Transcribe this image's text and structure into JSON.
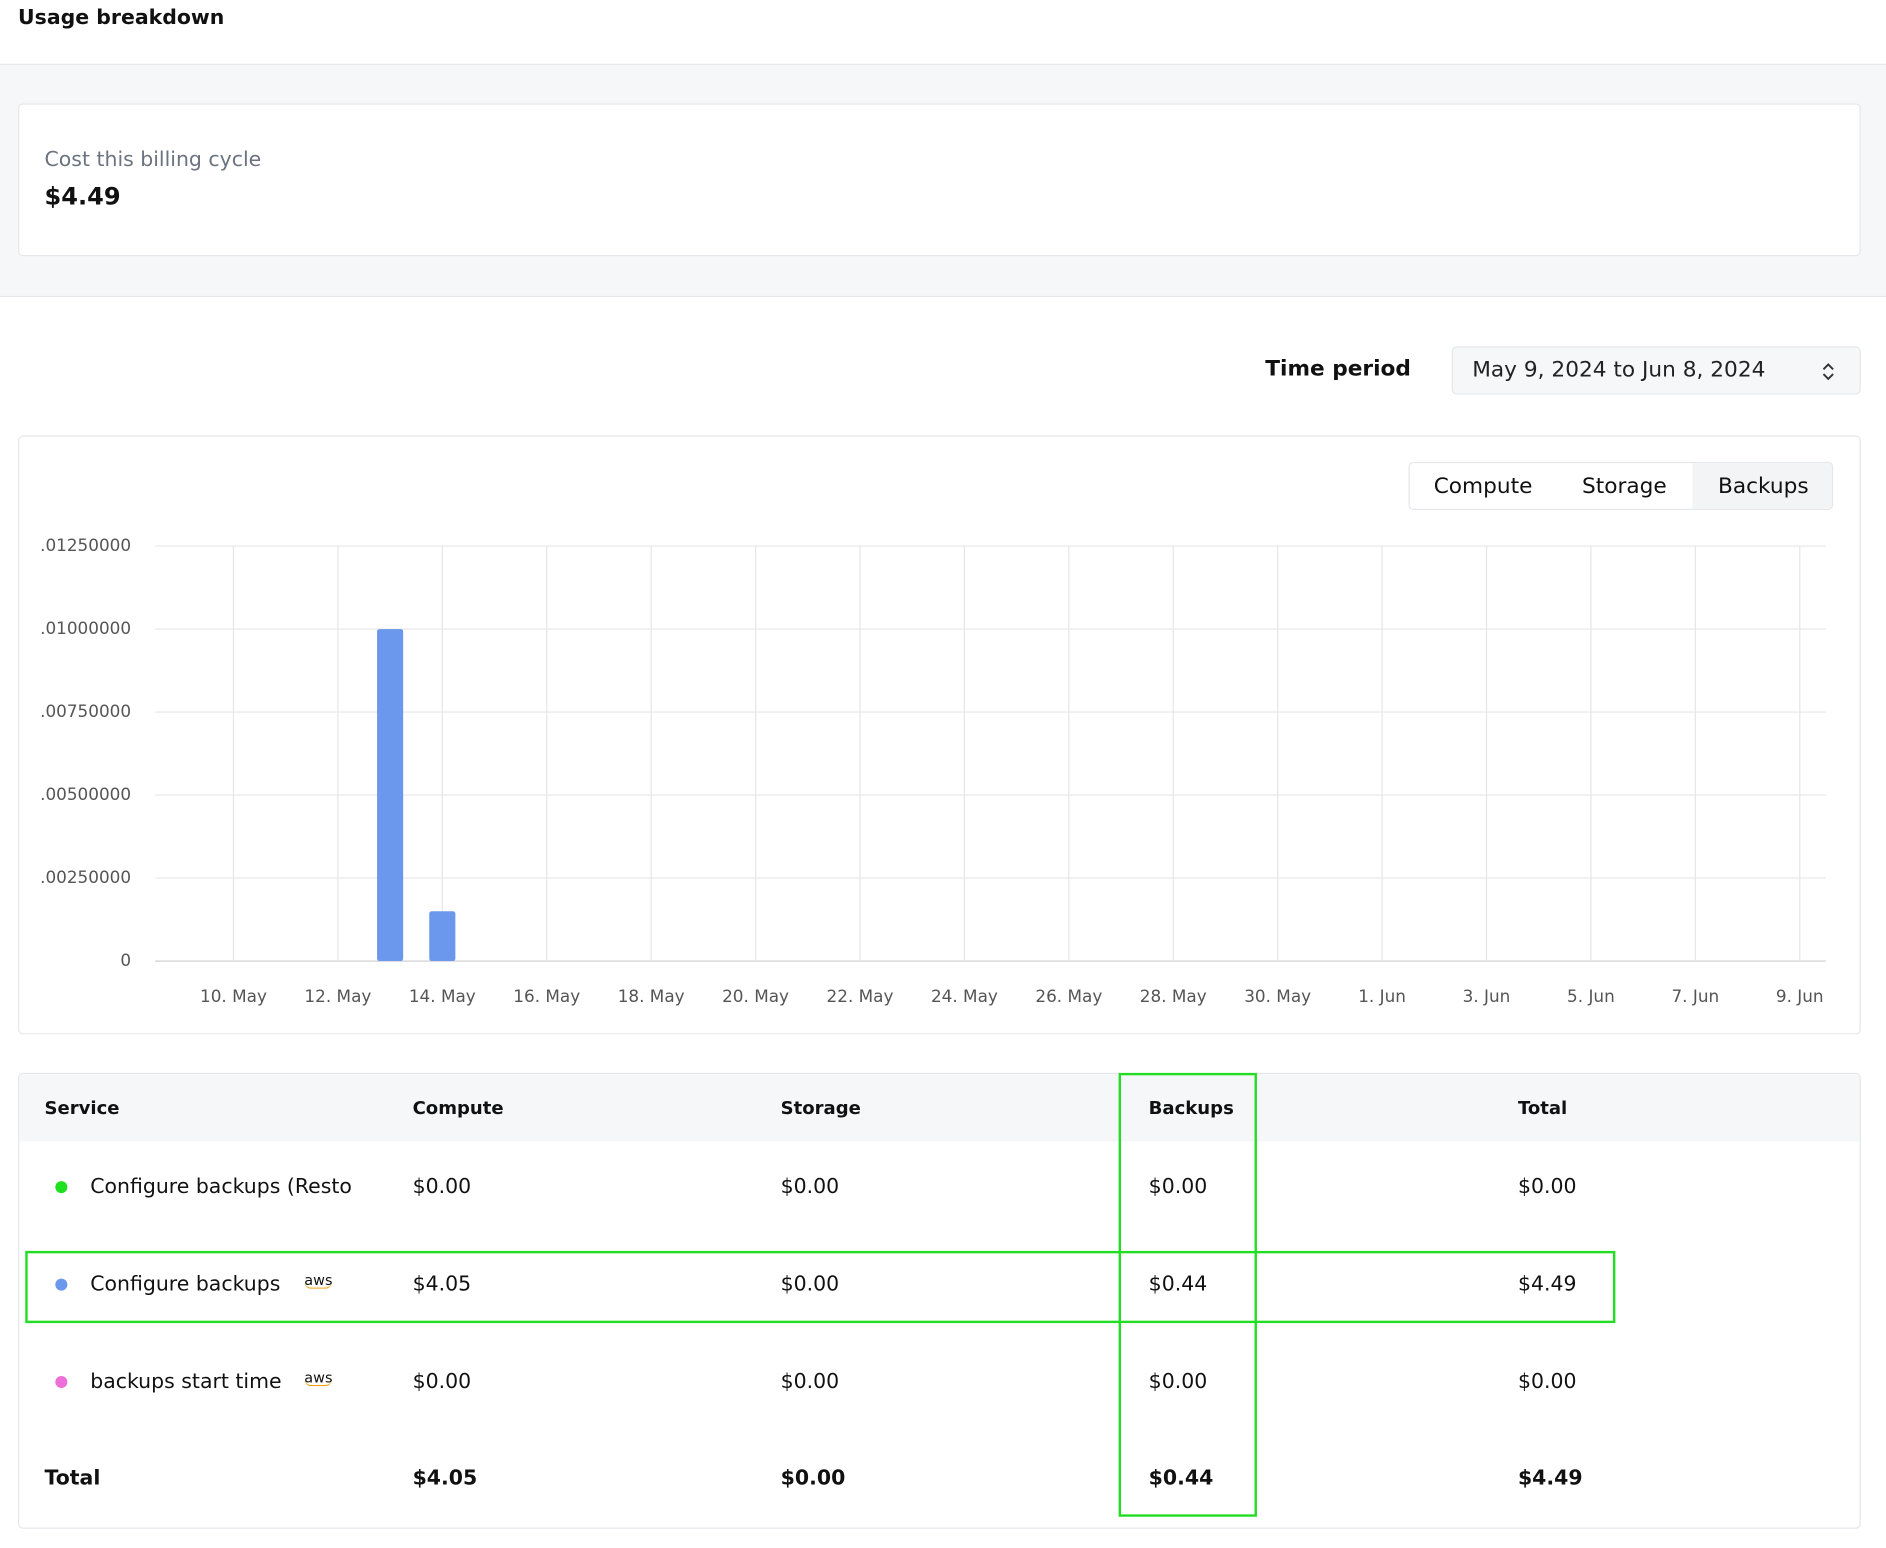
{
  "header": {
    "title": "Usage breakdown"
  },
  "cost_card": {
    "label": "Cost this billing cycle",
    "value": "$4.49"
  },
  "time_period": {
    "label": "Time period",
    "value": "May 9, 2024 to Jun 8, 2024"
  },
  "tabs": [
    "Compute",
    "Storage",
    "Backups"
  ],
  "chart_data": {
    "type": "bar",
    "color": "#6b98ec",
    "grid": true,
    "categories": [
      null,
      "10. May",
      null,
      "12. May",
      null,
      "14. May",
      null,
      "16. May",
      null,
      "18. May",
      null,
      "20. May",
      null,
      "22. May",
      null,
      "24. May",
      null,
      "26. May",
      null,
      "28. May",
      null,
      "30. May",
      null,
      "1. Jun",
      null,
      "3. Jun",
      null,
      "5. Jun",
      null,
      "7. Jun",
      null,
      "9. Jun"
    ],
    "values": [
      null,
      null,
      null,
      null,
      0.01,
      0.0015,
      null,
      null,
      null,
      null,
      null,
      null,
      null,
      null,
      null,
      null,
      null,
      null,
      null,
      null,
      null,
      null,
      null,
      null,
      null,
      null,
      null,
      null,
      null,
      null,
      null,
      null
    ],
    "ylim": [
      0,
      0.0125
    ],
    "yticks": [
      0,
      {
        "value": 0.0025,
        "label": ".00250000"
      },
      {
        "value": 0.005,
        "label": ".00500000"
      },
      {
        "value": 0.0075,
        "label": ".00750000"
      },
      {
        "value": 0.01,
        "label": ".01000000"
      },
      {
        "value": 0.0125,
        "label": ".01250000"
      }
    ]
  },
  "table": {
    "columns": [
      "Service",
      "Compute",
      "Storage",
      "Backups",
      "Total"
    ],
    "rows": [
      {
        "service": "Configure backups (Resto",
        "color": "#1ee01e",
        "cells": [
          "$0.00",
          "$0.00",
          "$0.00",
          "$0.00"
        ]
      },
      {
        "service": "Configure backups",
        "color": "#6b98ec",
        "badge": "aws",
        "cells": [
          "$4.05",
          "$0.00",
          "$0.44",
          "$4.49"
        ]
      },
      {
        "service": "backups start time",
        "color": "#ef6fd8",
        "badge": "aws",
        "cells": [
          "$0.00",
          "$0.00",
          "$0.00",
          "$0.00"
        ]
      }
    ],
    "total": {
      "label": "Total",
      "cells": [
        "$4.05",
        "$0.00",
        "$0.44",
        "$4.49"
      ]
    }
  }
}
